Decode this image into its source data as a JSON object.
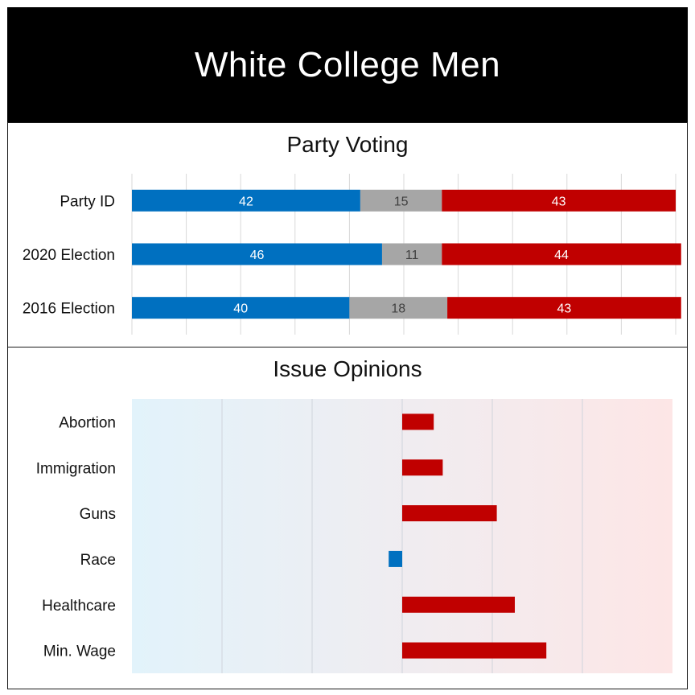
{
  "title": "White College Men",
  "chart_data": [
    {
      "type": "bar",
      "stacked": true,
      "orientation": "horizontal",
      "title": "Party Voting",
      "categories": [
        "Party ID",
        "2020 Election",
        "2016 Election"
      ],
      "series": [
        {
          "color": "#0070c0",
          "values": [
            42,
            46,
            40
          ]
        },
        {
          "color": "#a6a6a6",
          "values": [
            15,
            11,
            18
          ]
        },
        {
          "color": "#c00000",
          "values": [
            43,
            44,
            43
          ]
        }
      ],
      "xlim": [
        0,
        100
      ],
      "grid": true
    },
    {
      "type": "bar",
      "orientation": "horizontal",
      "title": "Issue Opinions",
      "categories": [
        "Abortion",
        "Immigration",
        "Guns",
        "Race",
        "Healthcare",
        "Min. Wage"
      ],
      "values": [
        0.07,
        0.09,
        0.21,
        -0.03,
        0.25,
        0.32
      ],
      "xlim": [
        -0.6,
        0.6
      ],
      "positive_color": "#c00000",
      "negative_color": "#0070c0",
      "background_gradient": [
        "#e2f3fb",
        "#fde6e6"
      ],
      "grid": true
    }
  ]
}
